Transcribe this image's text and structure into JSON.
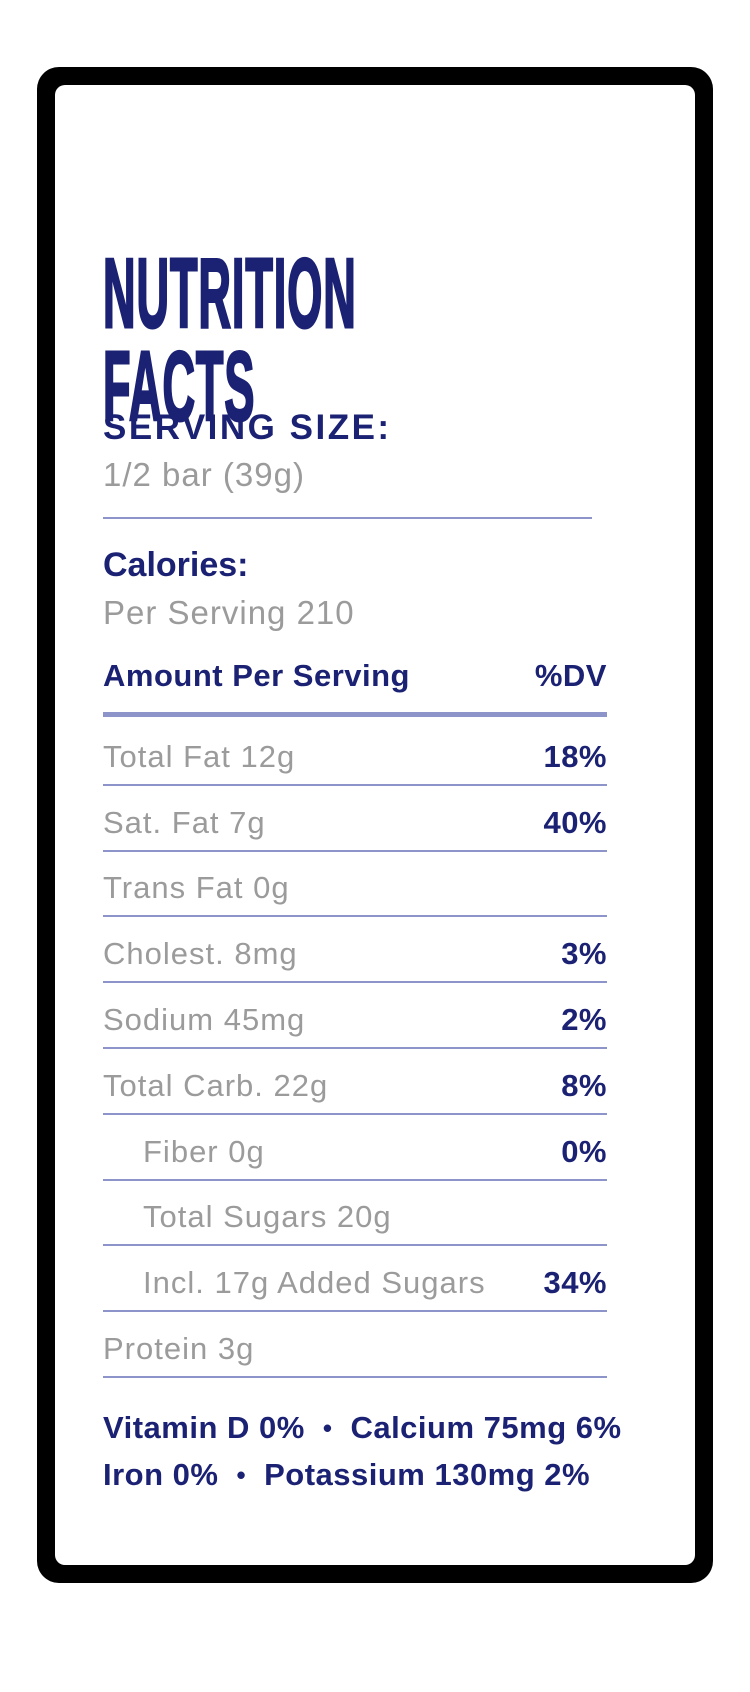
{
  "title": {
    "line1": "NUTRITION",
    "line2": "FACTS"
  },
  "serving": {
    "label": "SERVING SIZE:",
    "value": "1/2 bar (39g)"
  },
  "calories": {
    "label": "Calories:",
    "value": "Per Serving 210"
  },
  "table": {
    "header": {
      "label": "Amount Per Serving",
      "dv_label": "%DV"
    },
    "rows": [
      {
        "label": "Total Fat 12g",
        "dv": "18%",
        "indent": false
      },
      {
        "label": "Sat. Fat 7g",
        "dv": "40%",
        "indent": false
      },
      {
        "label": "Trans Fat 0g",
        "dv": "",
        "indent": false
      },
      {
        "label": "Cholest. 8mg",
        "dv": "3%",
        "indent": false
      },
      {
        "label": "Sodium 45mg",
        "dv": "2%",
        "indent": false
      },
      {
        "label": "Total Carb. 22g",
        "dv": "8%",
        "indent": false
      },
      {
        "label": "Fiber 0g",
        "dv": "0%",
        "indent": true
      },
      {
        "label": "Total Sugars 20g",
        "dv": "",
        "indent": true
      },
      {
        "label": "Incl. 17g Added Sugars",
        "dv": "34%",
        "indent": true
      },
      {
        "label": "Protein 3g",
        "dv": "",
        "indent": false
      }
    ]
  },
  "micronutrients": {
    "line1": {
      "item1": "Vitamin D 0%",
      "separator": "•",
      "item2": "Calcium 75mg 6%"
    },
    "line2": {
      "item1": "Iron 0%",
      "separator": "•",
      "item2": "Potassium 130mg 2%"
    }
  },
  "colors": {
    "navy": "#1b2173",
    "gray": "#9b9b9b",
    "divider": "#8c94c9",
    "frame": "#000000",
    "surface": "#ffffff"
  }
}
